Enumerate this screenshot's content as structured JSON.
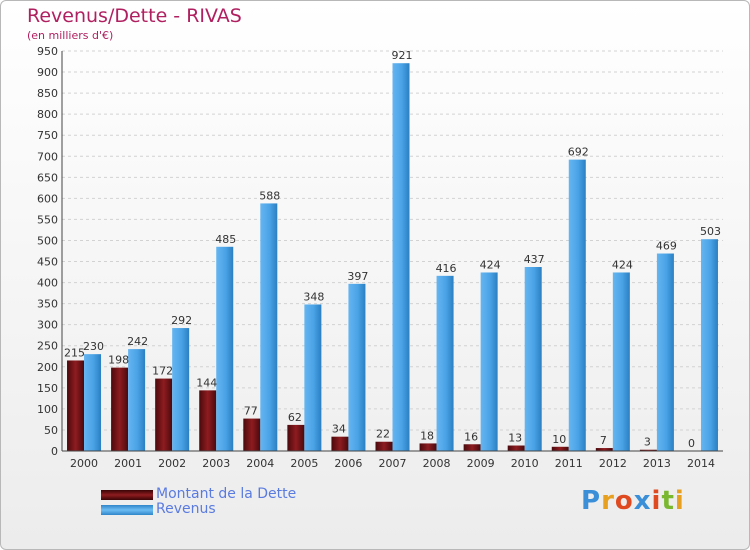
{
  "chart_data": {
    "type": "bar",
    "title": "Revenus/Dette - RIVAS",
    "subtitle": "(en milliers d'€)",
    "categories": [
      "2000",
      "2001",
      "2002",
      "2003",
      "2004",
      "2005",
      "2006",
      "2007",
      "2008",
      "2009",
      "2010",
      "2011",
      "2012",
      "2013",
      "2014"
    ],
    "series": [
      {
        "name": "Montant de la Dette",
        "color": "#7a1418",
        "values": [
          215,
          198,
          172,
          144,
          77,
          62,
          34,
          22,
          18,
          16,
          13,
          10,
          7,
          3,
          0
        ]
      },
      {
        "name": "Revenus",
        "color": "#4aa3e6",
        "values": [
          230,
          242,
          292,
          485,
          588,
          348,
          397,
          921,
          416,
          424,
          437,
          692,
          424,
          469,
          503
        ]
      }
    ],
    "yticks": [
      0,
      50,
      100,
      150,
      200,
      250,
      300,
      350,
      400,
      450,
      500,
      550,
      600,
      650,
      700,
      750,
      800,
      850,
      900,
      950
    ],
    "ylim": [
      0,
      950
    ],
    "grid": true,
    "legend": "bottom-left"
  },
  "logo": {
    "text": "Proxiti"
  }
}
